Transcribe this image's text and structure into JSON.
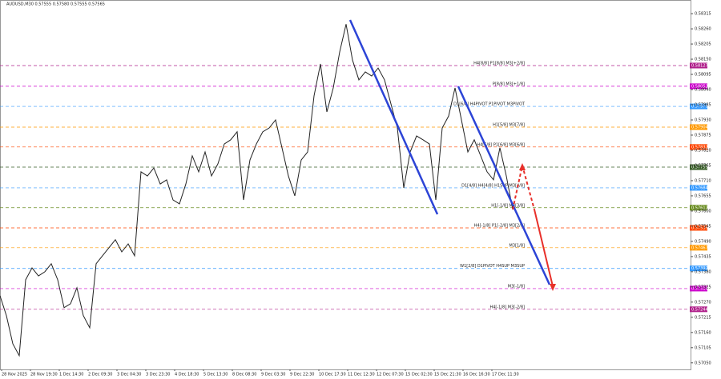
{
  "chart_data": {
    "type": "line",
    "title": "AUDUSD,M30  0.57555 0.57580 0.57555 0.57565",
    "x_labels": [
      "28 Nov 2025",
      "28 Nov 19:30",
      "1 Dec 14:30",
      "2 Dec 09:30",
      "3 Dec 04:30",
      "3 Dec 23:30",
      "4 Dec 18:30",
      "5 Dec 13:30",
      "8 Dec 08:30",
      "9 Dec 03:30",
      "9 Dec 22:30",
      "10 Dec 17:30",
      "11 Dec 12:30",
      "12 Dec 07:30",
      "15 Dec 02:30",
      "15 Dec 21:30",
      "16 Dec 16:30",
      "17 Dec 11:30"
    ],
    "series": [
      {
        "color": "#222222",
        "values": [
          0.57293,
          0.57221,
          0.57119,
          0.57076,
          0.57351,
          0.57394,
          0.57365,
          0.5738,
          0.57409,
          0.57351,
          0.5725,
          0.57264,
          0.57322,
          0.57221,
          0.57177,
          0.57409,
          0.57438,
          0.57467,
          0.57496,
          0.57452,
          0.57481,
          0.57438,
          0.57742,
          0.57727,
          0.57756,
          0.57698,
          0.57713,
          0.5764,
          0.57626,
          0.57698,
          0.578,
          0.57742,
          0.57814,
          0.57727,
          0.57771,
          0.57843,
          0.57858,
          0.57887,
          0.5764,
          0.57785,
          0.57843,
          0.57887,
          0.57901,
          0.5793,
          0.57829,
          0.57727,
          0.57655,
          0.57785,
          0.57814,
          0.58017,
          0.58133,
          0.57959,
          0.58046,
          0.58176,
          0.58277,
          0.58147,
          0.58075,
          0.58104,
          0.58089,
          0.58118,
          0.58075,
          0.57988,
          0.57901,
          0.57684,
          0.57814,
          0.57872,
          0.57858,
          0.57843,
          0.5764,
          0.57901,
          0.57944,
          0.58046,
          0.5793,
          0.57814,
          0.57858,
          0.578,
          0.57742,
          0.57713,
          0.57829,
          0.57727,
          0.57606
        ]
      }
    ],
    "levels": [
      {
        "name": "H4[8/8] P1[8/8] M3[+2/8]",
        "value": 0.58127,
        "value_label": "0.58127",
        "color": "#b0218b"
      },
      {
        "name": "P[8/8] M3[+1/8]",
        "value": 0.58052,
        "value_label": "0.58052",
        "color": "#cc00cc"
      },
      {
        "name": "D1[6/8] H4PIVOT P1PIVOT M3PIVOT",
        "value": 0.57979,
        "value_label": "0.57979",
        "color": "#3399ff"
      },
      {
        "name": "H1[5/8] M3[7/8]",
        "value": 0.57904,
        "value_label": "0.57904",
        "color": "#ff9900"
      },
      {
        "name": "H4[5/8] P1[6/8] M3[6/8]",
        "value": 0.57832,
        "value_label": "0.57832",
        "color": "#ff4500"
      },
      {
        "value": 0.57759,
        "value_label": "0.57759",
        "color": "#3a5f2a"
      },
      {
        "name": "D1[4/8] H4[4/8] H1SUP M3[4/8]",
        "value": 0.57684,
        "value_label": "0.57684",
        "color": "#3399ff"
      },
      {
        "name": "H1[-1/8] M3[3/8]",
        "value": 0.57612,
        "value_label": "0.57612",
        "color": "#6b8e23"
      },
      {
        "name": "H4[-1/8] P1[-2/8] M3[2/8]",
        "value": 0.57539,
        "value_label": "0.57539",
        "color": "#ff4500"
      },
      {
        "name": "M3[1/8]",
        "value": 0.57467,
        "value_label": "0.57467",
        "color": "#ff9900"
      },
      {
        "name": "W1[2/8] D1PIVOT H4SUP M3SUP",
        "value": 0.57392,
        "value_label": "0.57392",
        "color": "#3399ff"
      },
      {
        "name": "M3[-1/8]",
        "value": 0.57319,
        "value_label": "0.57319",
        "color": "#cc00cc"
      },
      {
        "name": "H4[-1/8] M3[-2/8]",
        "value": 0.57244,
        "value_label": "0.57244",
        "color": "#b0218b"
      }
    ],
    "ylim": [
      0.57032,
      0.5835
    ],
    "yticks": [
      {
        "value": 0.58315,
        "label": "0.58315"
      },
      {
        "value": 0.5826,
        "label": "0.58260"
      },
      {
        "value": 0.58205,
        "label": "0.58205"
      },
      {
        "value": 0.5815,
        "label": "0.58150"
      },
      {
        "value": 0.58095,
        "label": "0.58095"
      },
      {
        "value": 0.5804,
        "label": "0.58040"
      },
      {
        "value": 0.57985,
        "label": "0.57985"
      },
      {
        "value": 0.5793,
        "label": "0.57930"
      },
      {
        "value": 0.57875,
        "label": "0.57875"
      },
      {
        "value": 0.5782,
        "label": "0.57820"
      },
      {
        "value": 0.57765,
        "label": "0.57765"
      },
      {
        "value": 0.5771,
        "label": "0.57710"
      },
      {
        "value": 0.57655,
        "label": "0.57655"
      },
      {
        "value": 0.576,
        "label": "0.57600"
      },
      {
        "value": 0.57545,
        "label": "0.57545"
      },
      {
        "value": 0.5749,
        "label": "0.57490"
      },
      {
        "value": 0.57435,
        "label": "0.57435"
      },
      {
        "value": 0.5738,
        "label": "0.57380"
      },
      {
        "value": 0.57325,
        "label": "0.57325"
      },
      {
        "value": 0.5727,
        "label": "0.57270"
      },
      {
        "value": 0.57215,
        "label": "0.57215"
      },
      {
        "value": 0.5716,
        "label": "0.57160"
      },
      {
        "value": 0.57105,
        "label": "0.57105"
      },
      {
        "value": 0.5705,
        "label": "0.57050"
      }
    ]
  }
}
